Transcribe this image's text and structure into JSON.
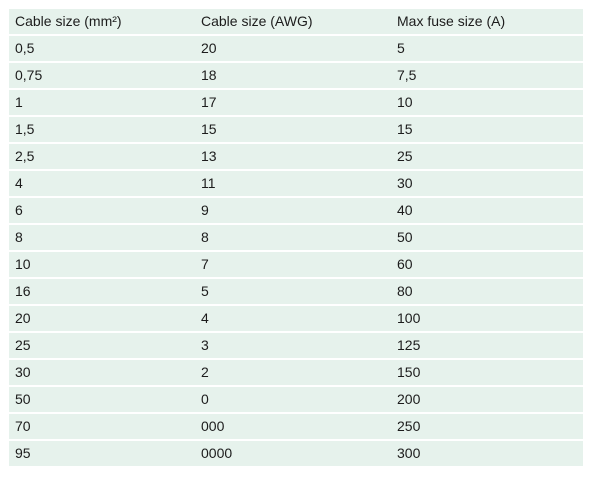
{
  "table": {
    "headers": [
      "Cable size (mm²)",
      "Cable size (AWG)",
      "Max fuse size (A)"
    ],
    "rows": [
      [
        "0,5",
        "20",
        "5"
      ],
      [
        "0,75",
        "18",
        "7,5"
      ],
      [
        "1",
        "17",
        "10"
      ],
      [
        "1,5",
        "15",
        "15"
      ],
      [
        "2,5",
        "13",
        "25"
      ],
      [
        "4",
        "11",
        "30"
      ],
      [
        "6",
        "9",
        "40"
      ],
      [
        "8",
        "8",
        "50"
      ],
      [
        "10",
        "7",
        "60"
      ],
      [
        "16",
        "5",
        "80"
      ],
      [
        "20",
        "4",
        "100"
      ],
      [
        "25",
        "3",
        "125"
      ],
      [
        "30",
        "2",
        "150"
      ],
      [
        "50",
        "0",
        "200"
      ],
      [
        "70",
        "000",
        "250"
      ],
      [
        "95",
        "0000",
        "300"
      ]
    ]
  },
  "colors": {
    "cell_background": "#e6f2ec",
    "text": "#1c1c1c"
  }
}
